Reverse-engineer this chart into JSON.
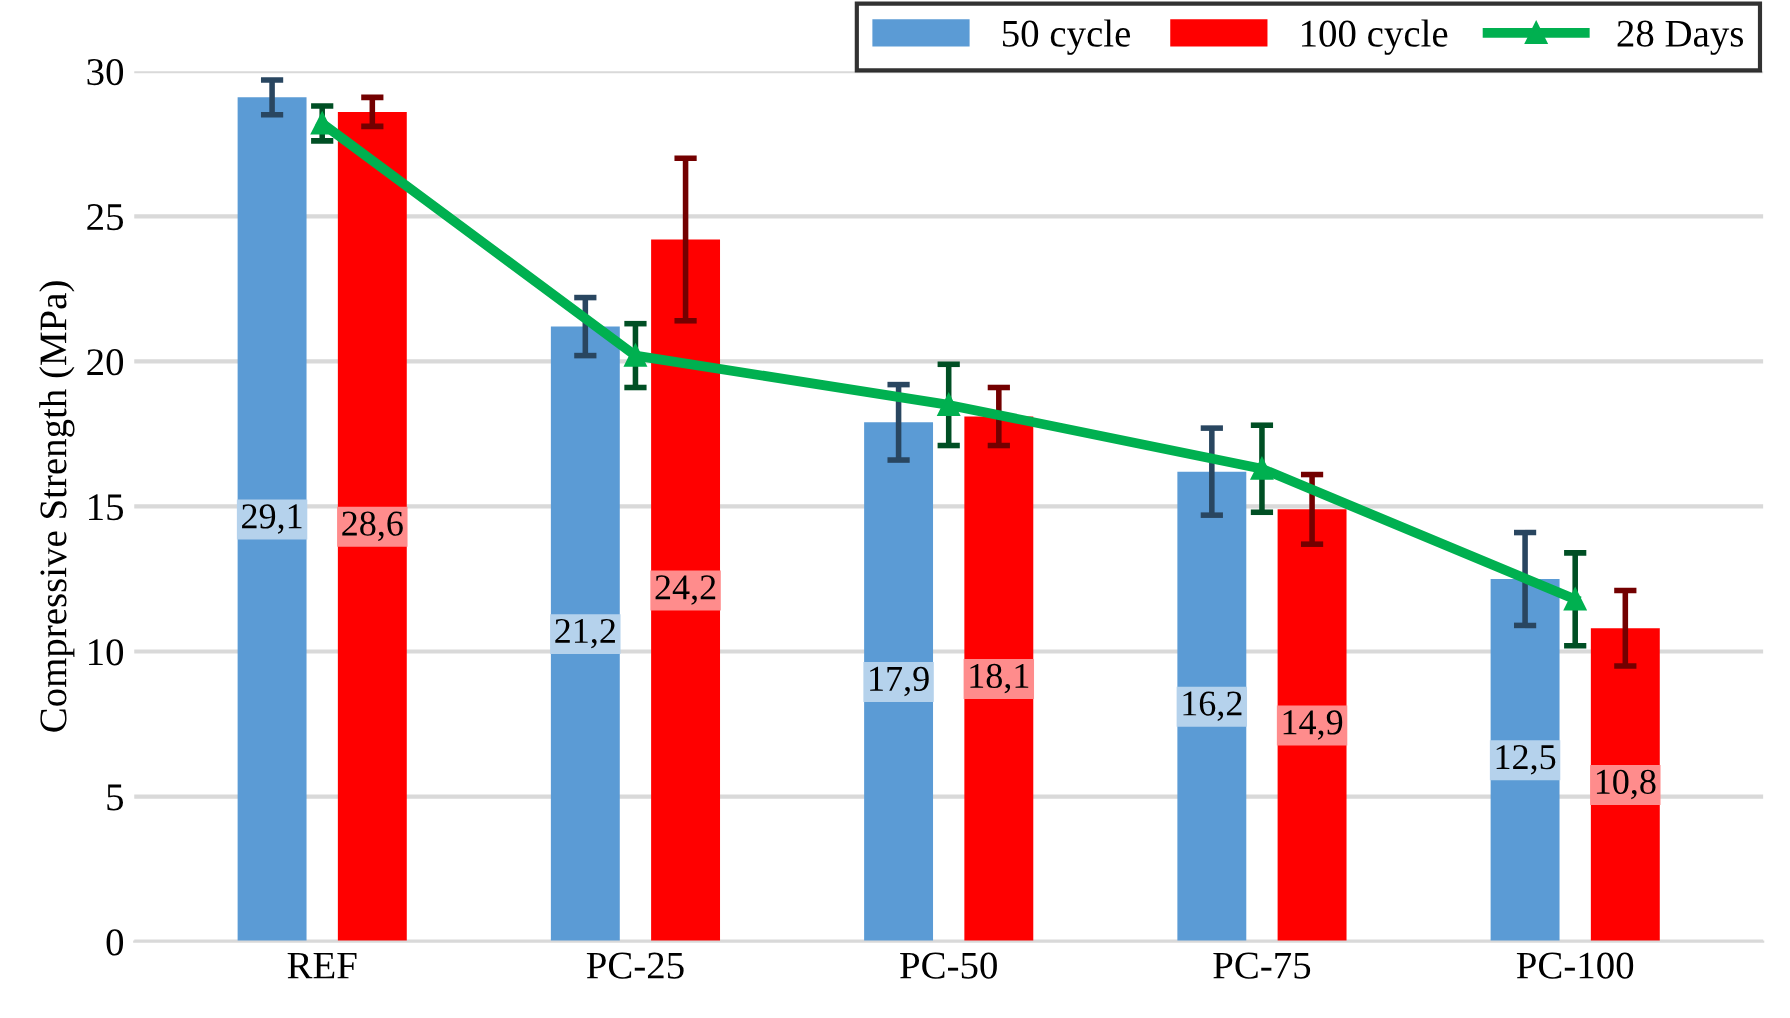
{
  "chart_data": {
    "type": "bar",
    "ylabel": "Compressive Strength (MPa)",
    "categories": [
      "REF",
      "PC-25",
      "PC-50",
      "PC-75",
      "PC-100"
    ],
    "series": [
      {
        "name": "50 cycle",
        "color": "#5b9bd5",
        "values": [
          29.1,
          21.2,
          17.9,
          16.2,
          12.5
        ],
        "errors": [
          0.6,
          1.0,
          1.3,
          1.5,
          1.6
        ],
        "value_labels": [
          "29,1",
          "21,2",
          "17,9",
          "16,2",
          "12,5"
        ]
      },
      {
        "name": "100 cycle",
        "color": "#ff0000",
        "values": [
          28.6,
          24.2,
          18.1,
          14.9,
          10.8
        ],
        "errors": [
          0.5,
          2.8,
          1.0,
          1.2,
          1.3
        ],
        "value_labels": [
          "28,6",
          "24,2",
          "18,1",
          "14,9",
          "10,8"
        ]
      },
      {
        "name": "28 Days",
        "type": "line",
        "color": "#00b050",
        "values": [
          28.2,
          20.2,
          18.5,
          16.3,
          11.8
        ],
        "errors": [
          0.6,
          1.1,
          1.4,
          1.5,
          1.6
        ],
        "marker": "triangle"
      }
    ],
    "ylim": [
      0,
      30
    ],
    "yticks": [
      0,
      5,
      10,
      15,
      20,
      25,
      30
    ],
    "grid": "y",
    "legend": "top right"
  }
}
